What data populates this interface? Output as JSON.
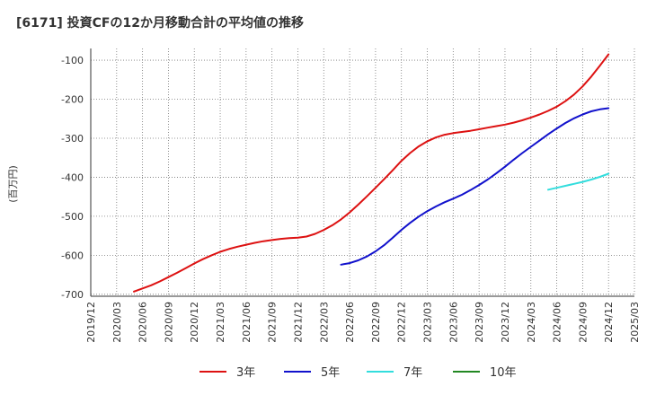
{
  "chart_data": {
    "type": "line",
    "title": "[6171]  投資CFの12か月移動合計の平均値の推移",
    "ylabel": "(百万円)",
    "ylim": [
      -705,
      -70
    ],
    "yticks": [
      -100,
      -200,
      -300,
      -400,
      -500,
      -600,
      -700
    ],
    "ytick_labels": [
      "-100",
      "-200",
      "-300",
      "-400",
      "-500",
      "-600",
      "-700"
    ],
    "xticks": [
      "2019/12",
      "2020/03",
      "2020/06",
      "2020/09",
      "2020/12",
      "2021/03",
      "2021/06",
      "2021/09",
      "2021/12",
      "2022/03",
      "2022/06",
      "2022/09",
      "2022/12",
      "2023/03",
      "2023/06",
      "2023/09",
      "2023/12",
      "2024/03",
      "2024/06",
      "2024/09",
      "2024/12",
      "2025/03"
    ],
    "grid": true,
    "legend_position": "bottom",
    "series": [
      {
        "name": "3年",
        "color": "#dd1111",
        "points": [
          [
            "2020/05",
            -693
          ],
          [
            "2020/06",
            -685
          ],
          [
            "2020/07",
            -677
          ],
          [
            "2020/08",
            -667
          ],
          [
            "2020/09",
            -656
          ],
          [
            "2020/10",
            -645
          ],
          [
            "2020/11",
            -633
          ],
          [
            "2020/12",
            -621
          ],
          [
            "2021/01",
            -610
          ],
          [
            "2021/02",
            -600
          ],
          [
            "2021/03",
            -591
          ],
          [
            "2021/04",
            -584
          ],
          [
            "2021/05",
            -578
          ],
          [
            "2021/06",
            -573
          ],
          [
            "2021/07",
            -568
          ],
          [
            "2021/08",
            -564
          ],
          [
            "2021/09",
            -561
          ],
          [
            "2021/10",
            -558
          ],
          [
            "2021/11",
            -556
          ],
          [
            "2021/12",
            -555
          ],
          [
            "2022/01",
            -552
          ],
          [
            "2022/02",
            -545
          ],
          [
            "2022/03",
            -535
          ],
          [
            "2022/04",
            -523
          ],
          [
            "2022/05",
            -508
          ],
          [
            "2022/06",
            -490
          ],
          [
            "2022/07",
            -470
          ],
          [
            "2022/08",
            -449
          ],
          [
            "2022/09",
            -427
          ],
          [
            "2022/10",
            -405
          ],
          [
            "2022/11",
            -382
          ],
          [
            "2022/12",
            -358
          ],
          [
            "2023/01",
            -338
          ],
          [
            "2023/02",
            -321
          ],
          [
            "2023/03",
            -308
          ],
          [
            "2023/04",
            -298
          ],
          [
            "2023/05",
            -291
          ],
          [
            "2023/06",
            -287
          ],
          [
            "2023/07",
            -284
          ],
          [
            "2023/08",
            -281
          ],
          [
            "2023/09",
            -277
          ],
          [
            "2023/10",
            -273
          ],
          [
            "2023/11",
            -269
          ],
          [
            "2023/12",
            -265
          ],
          [
            "2024/01",
            -260
          ],
          [
            "2024/02",
            -254
          ],
          [
            "2024/03",
            -247
          ],
          [
            "2024/04",
            -239
          ],
          [
            "2024/05",
            -230
          ],
          [
            "2024/06",
            -219
          ],
          [
            "2024/07",
            -205
          ],
          [
            "2024/08",
            -188
          ],
          [
            "2024/09",
            -167
          ],
          [
            "2024/10",
            -142
          ],
          [
            "2024/11",
            -114
          ],
          [
            "2024/12",
            -85
          ]
        ]
      },
      {
        "name": "5年",
        "color": "#1111cc",
        "points": [
          [
            "2022/05",
            -624
          ],
          [
            "2022/06",
            -620
          ],
          [
            "2022/07",
            -613
          ],
          [
            "2022/08",
            -603
          ],
          [
            "2022/09",
            -590
          ],
          [
            "2022/10",
            -574
          ],
          [
            "2022/11",
            -555
          ],
          [
            "2022/12",
            -535
          ],
          [
            "2023/01",
            -517
          ],
          [
            "2023/02",
            -501
          ],
          [
            "2023/03",
            -487
          ],
          [
            "2023/04",
            -475
          ],
          [
            "2023/05",
            -464
          ],
          [
            "2023/06",
            -455
          ],
          [
            "2023/07",
            -445
          ],
          [
            "2023/08",
            -433
          ],
          [
            "2023/09",
            -420
          ],
          [
            "2023/10",
            -406
          ],
          [
            "2023/11",
            -390
          ],
          [
            "2023/12",
            -373
          ],
          [
            "2024/01",
            -355
          ],
          [
            "2024/02",
            -338
          ],
          [
            "2024/03",
            -322
          ],
          [
            "2024/04",
            -306
          ],
          [
            "2024/05",
            -290
          ],
          [
            "2024/06",
            -275
          ],
          [
            "2024/07",
            -261
          ],
          [
            "2024/08",
            -249
          ],
          [
            "2024/09",
            -239
          ],
          [
            "2024/10",
            -231
          ],
          [
            "2024/11",
            -226
          ],
          [
            "2024/12",
            -223
          ]
        ]
      },
      {
        "name": "7年",
        "color": "#33dddd",
        "points": [
          [
            "2024/05",
            -432
          ],
          [
            "2024/06",
            -427
          ],
          [
            "2024/07",
            -422
          ],
          [
            "2024/08",
            -417
          ],
          [
            "2024/09",
            -412
          ],
          [
            "2024/10",
            -406
          ],
          [
            "2024/11",
            -399
          ],
          [
            "2024/12",
            -391
          ]
        ]
      },
      {
        "name": "10年",
        "color": "#228822",
        "points": []
      }
    ]
  }
}
